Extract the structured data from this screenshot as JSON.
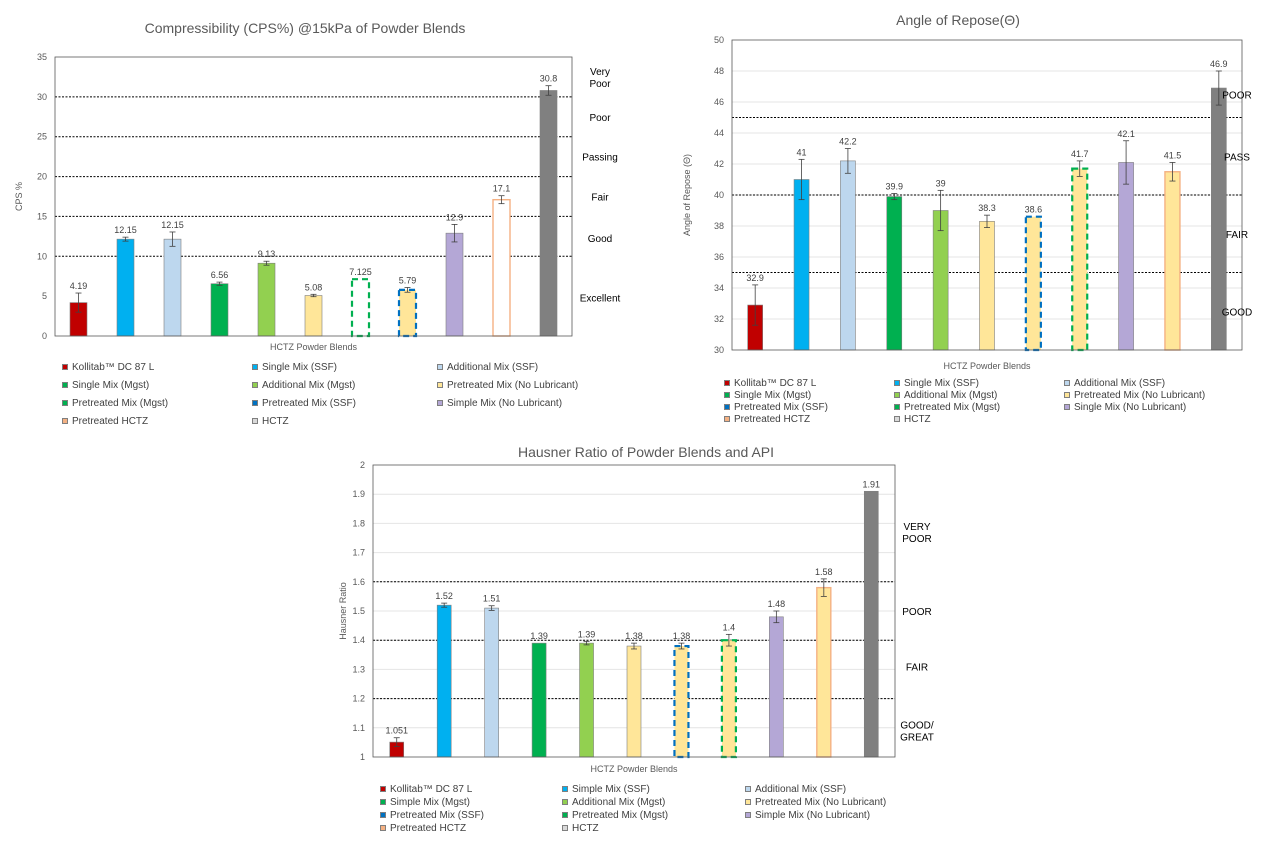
{
  "chart_data": [
    {
      "id": "cps",
      "type": "bar",
      "title": "Compressibility (CPS%) @15kPa of Powder Blends",
      "xlabel": "HCTZ Powder Blends",
      "ylabel": "CPS %",
      "ylim": [
        0,
        35
      ],
      "yticks": [
        "0",
        "5",
        "10",
        "15",
        "20",
        "25",
        "30",
        "35"
      ],
      "grid": false,
      "value_labels": [
        "4.19",
        "12.15",
        "12.15",
        "6.56",
        "9.13",
        "5.08",
        "7.125",
        "5.79",
        "12.9",
        "17.1",
        "30.8"
      ],
      "values": [
        4.19,
        12.15,
        12.15,
        6.56,
        9.13,
        5.08,
        7.125,
        5.79,
        12.9,
        17.1,
        30.8
      ],
      "errors": [
        1.2,
        0.25,
        0.9,
        0.2,
        0.25,
        0.15,
        0,
        0.3,
        1.1,
        0.5,
        0.6
      ],
      "fills": [
        "#C00000",
        "#00B0F0",
        "#BDD7EE",
        "#00B050",
        "#92D050",
        "#FFE699",
        "#FFFFFF",
        "#FFE699",
        "#B4A7D6",
        "#FFFFFF",
        "#808080"
      ],
      "styles": [
        "solid",
        "solid",
        "solid",
        "solid",
        "solid",
        "solid",
        "dash-green",
        "dash-blue",
        "solid",
        "orange-outline",
        "solid"
      ],
      "thresholds": [
        10,
        15,
        20,
        25,
        30
      ],
      "zones": [
        {
          "label": "Very\nPoor",
          "y": 32.5
        },
        {
          "label": "Poor",
          "y": 27.5
        },
        {
          "label": "Passing",
          "y": 22.5
        },
        {
          "label": "Fair",
          "y": 17.5
        },
        {
          "label": "Good",
          "y": 12.3
        },
        {
          "label": "Excellent",
          "y": 4.8
        }
      ],
      "legend": [
        {
          "label": "Kollitab™ DC 87 L",
          "color": "#C00000"
        },
        {
          "label": "Single Mix (SSF)",
          "color": "#00B0F0"
        },
        {
          "label": "Additional Mix (SSF)",
          "color": "#BDD7EE"
        },
        {
          "label": "Single Mix (Mgst)",
          "color": "#00B050"
        },
        {
          "label": "Additional Mix (Mgst)",
          "color": "#92D050"
        },
        {
          "label": "Pretreated Mix (No Lubricant)",
          "color": "#FFE699"
        },
        {
          "label": "Pretreated Mix (Mgst)",
          "color": "#00B050"
        },
        {
          "label": "Pretreated Mix (SSF)",
          "color": "#0070C0"
        },
        {
          "label": "Simple Mix (No Lubricant)",
          "color": "#B4A7D6"
        },
        {
          "label": "Pretreated HCTZ",
          "color": "#F4B183"
        },
        {
          "label": "HCTZ",
          "color": "#D9D9D9"
        }
      ]
    },
    {
      "id": "aor",
      "type": "bar",
      "title": "Angle of Repose(Θ)",
      "xlabel": "HCTZ Powder Blends",
      "ylabel": "Angle of Repose (Θ)",
      "ylim": [
        30,
        50
      ],
      "yticks": [
        "30",
        "32",
        "34",
        "36",
        "38",
        "40",
        "42",
        "44",
        "46",
        "48",
        "50"
      ],
      "grid": true,
      "value_labels": [
        "32.9",
        "41",
        "42.2",
        "39.9",
        "39",
        "38.3",
        "38.6",
        "41.7",
        "42.1",
        "41.5",
        "46.9"
      ],
      "values": [
        32.9,
        41,
        42.2,
        39.9,
        39,
        38.3,
        38.6,
        41.7,
        42.1,
        41.5,
        46.9
      ],
      "errors": [
        1.3,
        1.3,
        0.8,
        0.2,
        1.3,
        0.4,
        0,
        0.5,
        1.4,
        0.6,
        1.1
      ],
      "fills": [
        "#C00000",
        "#00B0F0",
        "#BDD7EE",
        "#00B050",
        "#92D050",
        "#FFE699",
        "#FFE699",
        "#FFE699",
        "#B4A7D6",
        "#FFE699",
        "#808080"
      ],
      "styles": [
        "solid",
        "solid",
        "solid",
        "solid",
        "solid",
        "solid",
        "dash-blue",
        "dash-green",
        "solid",
        "orange-outline",
        "solid"
      ],
      "thresholds": [
        35,
        40,
        45
      ],
      "zones": [
        {
          "label": "POOR",
          "y": 46.5
        },
        {
          "label": "PASS",
          "y": 42.5
        },
        {
          "label": "FAIR",
          "y": 37.5
        },
        {
          "label": "GOOD",
          "y": 32.5
        }
      ],
      "legend": [
        {
          "label": "Kollitab™ DC 87 L",
          "color": "#C00000"
        },
        {
          "label": "Single Mix (SSF)",
          "color": "#00B0F0"
        },
        {
          "label": "Additional Mix (SSF)",
          "color": "#BDD7EE"
        },
        {
          "label": "Single Mix (Mgst)",
          "color": "#00B050"
        },
        {
          "label": "Additional Mix (Mgst)",
          "color": "#92D050"
        },
        {
          "label": "Pretreated Mix (No Lubricant)",
          "color": "#FFE699"
        },
        {
          "label": "Pretreated Mix (SSF)",
          "color": "#0070C0"
        },
        {
          "label": "Pretreated Mix (Mgst)",
          "color": "#00B050"
        },
        {
          "label": "Single Mix (No Lubricant)",
          "color": "#B4A7D6"
        },
        {
          "label": "Pretreated HCTZ",
          "color": "#F4B183"
        },
        {
          "label": "HCTZ",
          "color": "#D9D9D9"
        }
      ]
    },
    {
      "id": "hr",
      "type": "bar",
      "title": "Hausner Ratio of Powder Blends and API",
      "xlabel": "HCTZ Powder Blends",
      "ylabel": "Hausner Ratio",
      "ylim": [
        1,
        2
      ],
      "yticks": [
        "1",
        "1.1",
        "1.2",
        "1.3",
        "1.4",
        "1.5",
        "1.6",
        "1.7",
        "1.8",
        "1.9",
        "2"
      ],
      "grid": true,
      "value_labels": [
        "1.051",
        "1.52",
        "1.51",
        "1.39",
        "1.39",
        "1.38",
        "1.38",
        "1.4",
        "1.48",
        "1.58",
        "1.91"
      ],
      "values": [
        1.051,
        1.52,
        1.51,
        1.39,
        1.39,
        1.38,
        1.38,
        1.4,
        1.48,
        1.58,
        1.91
      ],
      "errors": [
        0.015,
        0.007,
        0.008,
        0,
        0.006,
        0.01,
        0.01,
        0.02,
        0.02,
        0.03,
        0
      ],
      "fills": [
        "#C00000",
        "#00B0F0",
        "#BDD7EE",
        "#00B050",
        "#92D050",
        "#FFE699",
        "#FFE699",
        "#FFE699",
        "#B4A7D6",
        "#FFE699",
        "#808080"
      ],
      "styles": [
        "solid",
        "solid",
        "solid",
        "solid",
        "solid",
        "solid",
        "dash-blue",
        "dash-green",
        "solid",
        "orange-outline",
        "solid"
      ],
      "thresholds": [
        1.2,
        1.4,
        1.6
      ],
      "zones": [
        {
          "label": "VERY\nPOOR",
          "y": 1.77
        },
        {
          "label": "POOR",
          "y": 1.5
        },
        {
          "label": "FAIR",
          "y": 1.31
        },
        {
          "label": "GOOD/\nGREAT",
          "y": 1.09
        }
      ],
      "legend": [
        {
          "label": "Kollitab™ DC 87 L",
          "color": "#C00000"
        },
        {
          "label": "Simple Mix (SSF)",
          "color": "#00B0F0"
        },
        {
          "label": "Additional Mix (SSF)",
          "color": "#BDD7EE"
        },
        {
          "label": "Simple Mix (Mgst)",
          "color": "#00B050"
        },
        {
          "label": "Additional Mix (Mgst)",
          "color": "#92D050"
        },
        {
          "label": "Pretreated Mix (No Lubricant)",
          "color": "#FFE699"
        },
        {
          "label": "Pretreated Mix (SSF)",
          "color": "#0070C0"
        },
        {
          "label": "Pretreated Mix (Mgst)",
          "color": "#00B050"
        },
        {
          "label": "Simple Mix (No Lubricant)",
          "color": "#B4A7D6"
        },
        {
          "label": "Pretreated HCTZ",
          "color": "#F4B183"
        },
        {
          "label": "HCTZ",
          "color": "#D9D9D9"
        }
      ]
    }
  ]
}
